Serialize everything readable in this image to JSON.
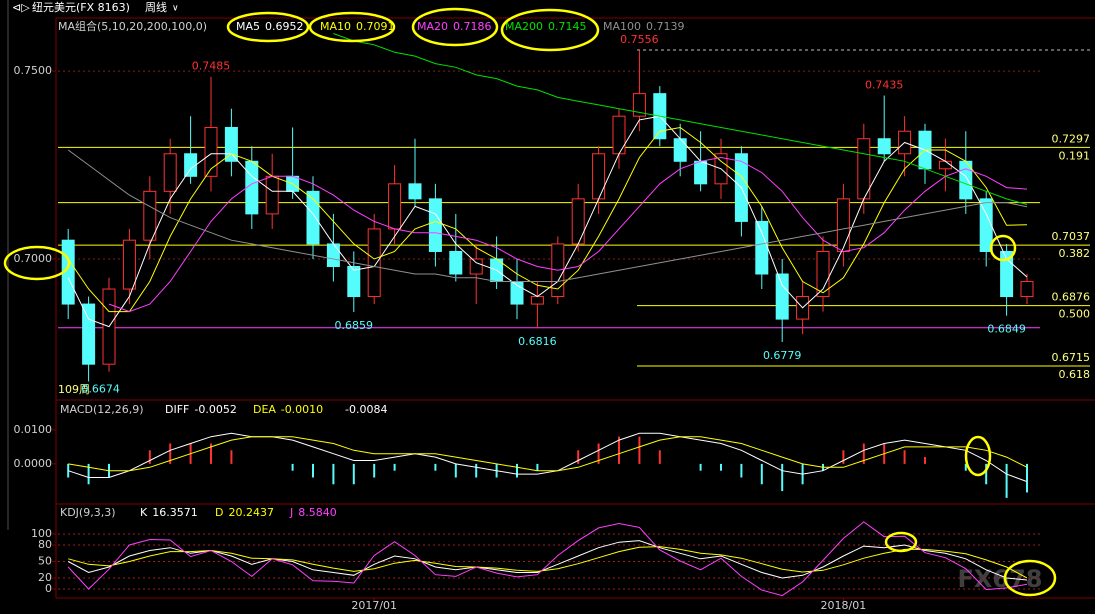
{
  "header": {
    "symbol": "纽元美元(FX 8163)",
    "period": "周线"
  },
  "watermark": "FX678",
  "chart_data": [
    {
      "type": "candlestick",
      "title": "MA组合(5,10,20,200,100,0)",
      "period_label": "109周",
      "up_color": "#ff3232",
      "down_color": "#54fcfc",
      "ylim": [
        0.663,
        0.7636
      ],
      "yticks": [
        {
          "value": 0.75,
          "label": "0.7500"
        },
        {
          "value": 0.7,
          "label": "0.7000"
        }
      ],
      "grid": true,
      "categories": [
        null,
        null,
        null,
        null,
        null,
        null,
        null,
        null,
        null,
        null,
        null,
        null,
        null,
        null,
        null,
        "2017/01",
        null,
        null,
        null,
        null,
        null,
        null,
        null,
        null,
        null,
        null,
        null,
        null,
        null,
        null,
        null,
        null,
        null,
        null,
        null,
        null,
        null,
        null,
        "2018/01",
        null,
        null,
        null,
        null,
        null,
        null,
        null,
        null,
        null
      ],
      "ohlc": [
        [
          0.705,
          0.708,
          0.684,
          0.688
        ],
        [
          0.688,
          0.69,
          0.6674,
          0.672
        ],
        [
          0.672,
          0.695,
          0.67,
          0.692
        ],
        [
          0.692,
          0.708,
          0.688,
          0.705
        ],
        [
          0.705,
          0.722,
          0.7,
          0.718
        ],
        [
          0.718,
          0.732,
          0.712,
          0.728
        ],
        [
          0.728,
          0.738,
          0.72,
          0.722
        ],
        [
          0.722,
          0.7485,
          0.718,
          0.735
        ],
        [
          0.735,
          0.74,
          0.722,
          0.726
        ],
        [
          0.726,
          0.73,
          0.708,
          0.712
        ],
        [
          0.712,
          0.728,
          0.708,
          0.722
        ],
        [
          0.722,
          0.735,
          0.716,
          0.718
        ],
        [
          0.718,
          0.722,
          0.7,
          0.704
        ],
        [
          0.704,
          0.712,
          0.694,
          0.698
        ],
        [
          0.698,
          0.702,
          0.6859,
          0.69
        ],
        [
          0.69,
          0.712,
          0.688,
          0.708
        ],
        [
          0.708,
          0.725,
          0.704,
          0.72
        ],
        [
          0.72,
          0.732,
          0.714,
          0.716
        ],
        [
          0.716,
          0.72,
          0.698,
          0.702
        ],
        [
          0.702,
          0.712,
          0.694,
          0.696
        ],
        [
          0.696,
          0.704,
          0.688,
          0.7
        ],
        [
          0.7,
          0.706,
          0.692,
          0.694
        ],
        [
          0.694,
          0.7,
          0.684,
          0.688
        ],
        [
          0.688,
          0.694,
          0.6816,
          0.69
        ],
        [
          0.69,
          0.706,
          0.688,
          0.704
        ],
        [
          0.704,
          0.72,
          0.702,
          0.716
        ],
        [
          0.716,
          0.73,
          0.712,
          0.728
        ],
        [
          0.728,
          0.74,
          0.724,
          0.738
        ],
        [
          0.738,
          0.7556,
          0.734,
          0.744
        ],
        [
          0.744,
          0.746,
          0.73,
          0.732
        ],
        [
          0.732,
          0.736,
          0.722,
          0.726
        ],
        [
          0.726,
          0.734,
          0.718,
          0.72
        ],
        [
          0.72,
          0.732,
          0.716,
          0.728
        ],
        [
          0.728,
          0.73,
          0.706,
          0.71
        ],
        [
          0.71,
          0.714,
          0.692,
          0.696
        ],
        [
          0.696,
          0.7,
          0.6779,
          0.684
        ],
        [
          0.684,
          0.694,
          0.68,
          0.69
        ],
        [
          0.69,
          0.706,
          0.686,
          0.702
        ],
        [
          0.702,
          0.72,
          0.698,
          0.716
        ],
        [
          0.716,
          0.736,
          0.712,
          0.732
        ],
        [
          0.732,
          0.7435,
          0.726,
          0.728
        ],
        [
          0.728,
          0.738,
          0.722,
          0.734
        ],
        [
          0.734,
          0.736,
          0.72,
          0.724
        ],
        [
          0.724,
          0.732,
          0.718,
          0.726
        ],
        [
          0.726,
          0.734,
          0.712,
          0.716
        ],
        [
          0.716,
          0.718,
          0.698,
          0.702
        ],
        [
          0.702,
          0.704,
          0.6849,
          0.69
        ],
        [
          0.69,
          0.696,
          0.688,
          0.694
        ]
      ],
      "series": [
        {
          "name": "MA5",
          "color": "#ffffff",
          "values": [
            0.695,
            0.684,
            0.682,
            0.69,
            0.704,
            0.716,
            0.724,
            0.728,
            0.728,
            0.722,
            0.718,
            0.718,
            0.712,
            0.704,
            0.697,
            0.698,
            0.706,
            0.714,
            0.712,
            0.704,
            0.699,
            0.697,
            0.693,
            0.69,
            0.694,
            0.704,
            0.716,
            0.728,
            0.737,
            0.738,
            0.732,
            0.726,
            0.724,
            0.719,
            0.707,
            0.693,
            0.687,
            0.692,
            0.703,
            0.716,
            0.726,
            0.731,
            0.729,
            0.726,
            0.722,
            0.712,
            0.7,
            0.6952
          ]
        },
        {
          "name": "MA10",
          "color": "#ffff00",
          "values": [
            0.7,
            0.692,
            0.686,
            0.686,
            0.694,
            0.706,
            0.716,
            0.724,
            0.728,
            0.726,
            0.722,
            0.72,
            0.716,
            0.71,
            0.704,
            0.7,
            0.702,
            0.708,
            0.71,
            0.708,
            0.703,
            0.7,
            0.696,
            0.693,
            0.692,
            0.697,
            0.706,
            0.716,
            0.727,
            0.734,
            0.735,
            0.731,
            0.726,
            0.722,
            0.714,
            0.703,
            0.694,
            0.691,
            0.695,
            0.704,
            0.715,
            0.724,
            0.729,
            0.729,
            0.726,
            0.719,
            0.709,
            0.7091
          ]
        },
        {
          "name": "MA20",
          "color": "#ff40ff",
          "values": [
            null,
            null,
            0.688,
            0.686,
            0.688,
            0.694,
            0.702,
            0.71,
            0.716,
            0.72,
            0.722,
            0.722,
            0.72,
            0.717,
            0.713,
            0.71,
            0.708,
            0.707,
            0.707,
            0.706,
            0.705,
            0.703,
            0.7,
            0.698,
            0.697,
            0.698,
            0.702,
            0.708,
            0.714,
            0.72,
            0.724,
            0.726,
            0.727,
            0.726,
            0.723,
            0.718,
            0.711,
            0.705,
            0.702,
            0.703,
            0.707,
            0.713,
            0.718,
            0.722,
            0.724,
            0.722,
            0.719,
            0.7186
          ]
        },
        {
          "name": "MA200",
          "color": "#00e000",
          "values": [
            null,
            null,
            null,
            null,
            null,
            null,
            null,
            null,
            null,
            null,
            null,
            null,
            null,
            0.76,
            0.758,
            0.757,
            0.755,
            0.754,
            0.752,
            0.751,
            0.749,
            0.748,
            0.746,
            0.745,
            0.743,
            0.742,
            0.741,
            0.74,
            0.739,
            0.738,
            0.737,
            0.736,
            0.735,
            0.734,
            0.733,
            0.732,
            0.731,
            0.73,
            0.729,
            0.728,
            0.727,
            0.726,
            0.724,
            0.722,
            0.72,
            0.718,
            0.716,
            0.7145
          ]
        },
        {
          "name": "MA100",
          "color": "#909090",
          "values": [
            0.729,
            0.725,
            0.721,
            0.717,
            0.714,
            0.711,
            0.709,
            0.707,
            0.705,
            0.704,
            0.703,
            0.702,
            0.701,
            0.7,
            0.699,
            0.698,
            0.697,
            0.696,
            0.696,
            0.695,
            0.695,
            0.694,
            0.694,
            0.694,
            0.694,
            0.695,
            0.696,
            0.697,
            0.698,
            0.699,
            0.7,
            0.701,
            0.702,
            0.703,
            0.704,
            0.705,
            0.706,
            0.707,
            0.708,
            0.709,
            0.71,
            0.711,
            0.712,
            0.713,
            0.714,
            0.715,
            0.715,
            0.7139
          ]
        }
      ],
      "levels": [
        {
          "price": 0.7297,
          "fib": "0.191"
        },
        {
          "price": 0.7037,
          "fib": "0.382"
        },
        {
          "price": 0.6876,
          "fib": "0.500"
        },
        {
          "price": 0.6715,
          "fib": "0.618"
        }
      ],
      "lines": [
        {
          "value": 0.715,
          "color": "#ffff00"
        },
        {
          "value": 0.6817,
          "color": "#ff40ff"
        }
      ]
    },
    {
      "type": "macd",
      "title": "MACD(12,26,9)",
      "ylim": [
        -0.0115,
        0.0179
      ],
      "yticks": [
        {
          "value": 0.01,
          "label": "0.0100"
        },
        {
          "value": 0,
          "label": "0.0000"
        }
      ],
      "bars": {
        "up_color": "#ff3232",
        "down_color": "#54fcfc",
        "values": [
          -0.004,
          -0.006,
          -0.004,
          0,
          0.004,
          0.006,
          0.006,
          0.006,
          0.004,
          0,
          0,
          -0.002,
          -0.004,
          -0.006,
          -0.006,
          -0.004,
          -0.002,
          0,
          -0.002,
          -0.004,
          -0.004,
          -0.004,
          -0.004,
          -0.002,
          0,
          0.004,
          0.006,
          0.008,
          0.008,
          0.004,
          0,
          -0.002,
          -0.002,
          -0.004,
          -0.006,
          -0.008,
          -0.006,
          -0.002,
          0.004,
          0.006,
          0.006,
          0.004,
          0.002,
          0,
          -0.002,
          -0.006,
          -0.01,
          -0.0084
        ]
      },
      "series": [
        {
          "name": "DIFF",
          "color": "#ffffff",
          "values": [
            -0.002,
            -0.004,
            -0.004,
            -0.002,
            0.001,
            0.004,
            0.006,
            0.008,
            0.009,
            0.008,
            0.008,
            0.007,
            0.005,
            0.003,
            0.001,
            0.001,
            0.002,
            0.003,
            0.002,
            0,
            -0.001,
            -0.002,
            -0.003,
            -0.003,
            -0.002,
            0.001,
            0.004,
            0.007,
            0.009,
            0.009,
            0.008,
            0.007,
            0.006,
            0.004,
            0.001,
            -0.002,
            -0.003,
            -0.002,
            0.001,
            0.004,
            0.006,
            0.007,
            0.006,
            0.005,
            0.004,
            0.001,
            -0.003,
            -0.0052
          ]
        },
        {
          "name": "DEA",
          "color": "#ffff00",
          "last_label": "-0.0010",
          "values": [
            0,
            -0.001,
            -0.002,
            -0.002,
            -0.001,
            0.001,
            0.003,
            0.005,
            0.007,
            0.008,
            0.008,
            0.008,
            0.007,
            0.006,
            0.004,
            0.003,
            0.003,
            0.003,
            0.003,
            0.002,
            0.001,
            0,
            -0.001,
            -0.002,
            -0.002,
            -0.001,
            0.001,
            0.003,
            0.005,
            0.007,
            0.008,
            0.008,
            0.007,
            0.006,
            0.004,
            0.002,
            0,
            -0.001,
            -0.001,
            0.001,
            0.003,
            0.005,
            0.005,
            0.005,
            0.005,
            0.004,
            0.002,
            -0.001
          ]
        }
      ]
    },
    {
      "type": "kdj",
      "title": "KDJ(9,3,3)",
      "ylim": [
        -14.5,
        143.6
      ],
      "yticks": [
        0,
        20,
        50,
        80,
        100
      ],
      "grid": true,
      "series": [
        {
          "name": "K",
          "color": "#ffffff",
          "values": [
            50,
            30,
            40,
            60,
            70,
            75,
            65,
            70,
            60,
            45,
            55,
            50,
            35,
            30,
            25,
            45,
            60,
            55,
            40,
            35,
            40,
            35,
            30,
            30,
            45,
            60,
            75,
            85,
            88,
            75,
            65,
            55,
            60,
            45,
            30,
            20,
            25,
            40,
            60,
            78,
            75,
            80,
            70,
            65,
            55,
            35,
            20,
            16.3571
          ]
        },
        {
          "name": "D",
          "color": "#ffff00",
          "values": [
            55,
            45,
            42,
            50,
            60,
            68,
            68,
            70,
            65,
            56,
            55,
            53,
            45,
            38,
            32,
            37,
            47,
            52,
            47,
            41,
            40,
            38,
            34,
            32,
            37,
            46,
            57,
            68,
            76,
            77,
            72,
            65,
            62,
            56,
            46,
            36,
            31,
            34,
            44,
            56,
            65,
            72,
            72,
            69,
            64,
            53,
            40,
            20.2437
          ]
        },
        {
          "name": "J",
          "color": "#ff40ff",
          "last_label": "8.5840",
          "values": [
            40,
            0,
            36,
            80,
            90,
            89,
            59,
            70,
            50,
            23,
            55,
            44,
            15,
            14,
            11,
            61,
            86,
            61,
            26,
            23,
            40,
            29,
            22,
            26,
            61,
            88,
            111,
            119,
            112,
            71,
            51,
            35,
            56,
            23,
            -2,
            -12,
            13,
            52,
            92,
            122,
            95,
            96,
            66,
            57,
            37,
            -1,
            2,
            8.584
          ]
        }
      ]
    }
  ]
}
